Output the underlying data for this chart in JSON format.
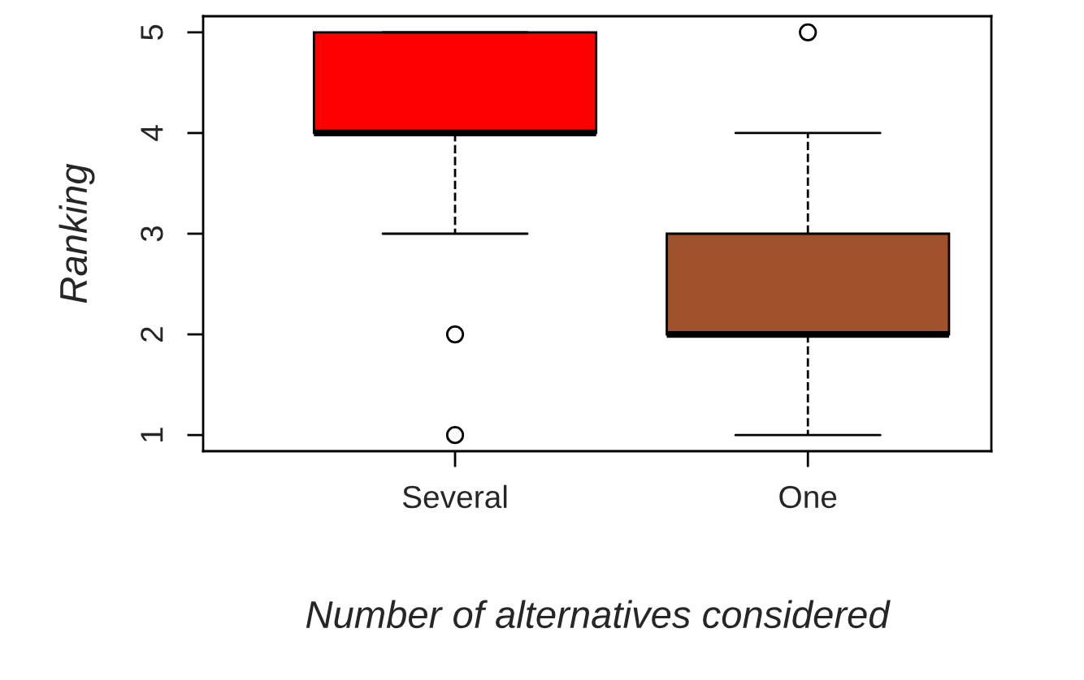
{
  "chart_data": {
    "type": "box",
    "xlabel": "Number of alternatives considered",
    "ylabel": "Ranking",
    "categories": [
      "Several",
      "One"
    ],
    "colors": [
      "#ff0000",
      "#a0522d"
    ],
    "boxes": [
      {
        "low": 3,
        "q1": 4,
        "median": 4,
        "q3": 5,
        "high": 5,
        "outliers": [
          2,
          1
        ]
      },
      {
        "low": 1,
        "q1": 2,
        "median": 2,
        "q3": 3,
        "high": 4,
        "outliers": [
          5
        ]
      }
    ],
    "ylim": [
      0.84,
      5.16
    ],
    "yticks": [
      1,
      2,
      3,
      4,
      5
    ],
    "grid": false,
    "legend": false
  }
}
